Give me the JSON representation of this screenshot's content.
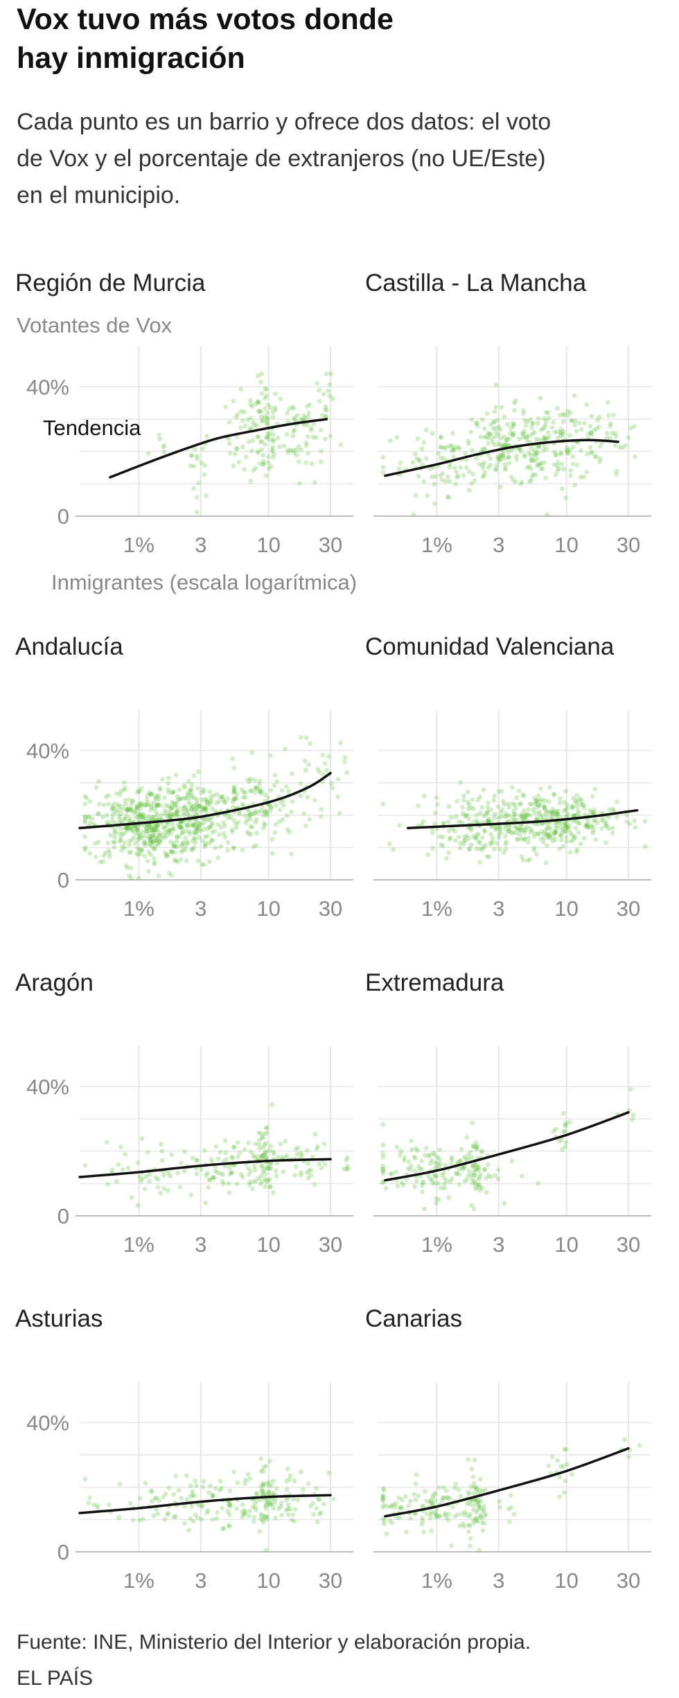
{
  "title_lines": [
    "Vox tuvo más votos donde",
    "hay inmigración"
  ],
  "subtitle_lines": [
    "Cada punto es un barrio y ofrece dos datos: el voto",
    "de Vox y el porcentaje de extranjeros (no UE/Este)",
    "en el municipio."
  ],
  "footer_lines": [
    "Fuente: INE, Ministerio del Interior y elaboración propia.",
    "EL PAÍS"
  ],
  "colors": {
    "points": "#5cbf3a",
    "trend": "#111111",
    "grid": "#e6e6e6",
    "axis": "#bbbbbb",
    "text": "#333333",
    "muted": "#888888"
  },
  "chart_data": [
    {
      "type": "scatter",
      "title": "Región de Murcia",
      "ylabel": "Votantes de Vox",
      "xlabel": "Inmigrantes (escala logarítmica)",
      "x_scale": "log",
      "xlim": [
        0.35,
        45
      ],
      "ylim": [
        0,
        45
      ],
      "x_ticks": [
        1,
        3,
        10,
        30
      ],
      "x_tick_labels": [
        "1%",
        "3",
        "10",
        "30"
      ],
      "y_ticks": [
        0,
        40
      ],
      "y_tick_labels": [
        "0",
        "40%"
      ],
      "annotation": "Tendencia",
      "trend": [
        [
          0.6,
          12
        ],
        [
          1,
          15.5
        ],
        [
          2,
          20
        ],
        [
          4,
          24
        ],
        [
          8,
          26.5
        ],
        [
          15,
          28.5
        ],
        [
          28,
          30
        ]
      ],
      "clusters": [
        {
          "x": 1.5,
          "y": 21,
          "n": 6,
          "sx": 0.05,
          "sy": 3
        },
        {
          "x": 2.9,
          "y": 17,
          "n": 18,
          "sx": 0.05,
          "sy": 6
        },
        {
          "x": 6.5,
          "y": 25,
          "n": 40,
          "sx": 0.07,
          "sy": 7
        },
        {
          "x": 9.5,
          "y": 26,
          "n": 70,
          "sx": 0.05,
          "sy": 8
        },
        {
          "x": 16,
          "y": 27,
          "n": 25,
          "sx": 0.06,
          "sy": 6
        },
        {
          "x": 20,
          "y": 27,
          "n": 30,
          "sx": 0.06,
          "sy": 8
        },
        {
          "x": 28,
          "y": 34,
          "n": 18,
          "sx": 0.04,
          "sy": 6
        }
      ]
    },
    {
      "type": "scatter",
      "title": "Castilla - La Mancha",
      "x_scale": "log",
      "xlim": [
        0.35,
        45
      ],
      "ylim": [
        0,
        45
      ],
      "x_ticks": [
        1,
        3,
        10,
        30
      ],
      "x_tick_labels": [
        "1%",
        "3",
        "10",
        "30"
      ],
      "y_ticks": [
        0,
        40
      ],
      "y_tick_labels": [
        "",
        ""
      ],
      "trend": [
        [
          0.4,
          12.5
        ],
        [
          1,
          16
        ],
        [
          2,
          19
        ],
        [
          4,
          21.5
        ],
        [
          8,
          23
        ],
        [
          15,
          23.5
        ],
        [
          25,
          23
        ]
      ],
      "clusters": [
        {
          "x": 1.2,
          "y": 17,
          "n": 90,
          "sx": 0.25,
          "sy": 5
        },
        {
          "x": 3.5,
          "y": 21,
          "n": 160,
          "sx": 0.2,
          "sy": 6
        },
        {
          "x": 9,
          "y": 23,
          "n": 120,
          "sx": 0.18,
          "sy": 6
        },
        {
          "x": 20,
          "y": 23,
          "n": 30,
          "sx": 0.12,
          "sy": 5
        }
      ]
    },
    {
      "type": "scatter",
      "title": "Andalucía",
      "x_scale": "log",
      "xlim": [
        0.35,
        45
      ],
      "ylim": [
        0,
        45
      ],
      "x_ticks": [
        1,
        3,
        10,
        30
      ],
      "x_tick_labels": [
        "1%",
        "3",
        "10",
        "30"
      ],
      "y_ticks": [
        0,
        40
      ],
      "y_tick_labels": [
        "0",
        "40%"
      ],
      "trend": [
        [
          0.35,
          16
        ],
        [
          1,
          17.5
        ],
        [
          3,
          19.5
        ],
        [
          10,
          24
        ],
        [
          20,
          28.5
        ],
        [
          30,
          33
        ]
      ],
      "clusters": [
        {
          "x": 1.1,
          "y": 17,
          "n": 420,
          "sx": 0.22,
          "sy": 6
        },
        {
          "x": 3.2,
          "y": 19,
          "n": 220,
          "sx": 0.2,
          "sy": 6
        },
        {
          "x": 9,
          "y": 23,
          "n": 110,
          "sx": 0.2,
          "sy": 6
        },
        {
          "x": 25,
          "y": 33,
          "n": 25,
          "sx": 0.1,
          "sy": 6
        }
      ]
    },
    {
      "type": "scatter",
      "title": "Comunidad Valenciana",
      "x_scale": "log",
      "xlim": [
        0.35,
        45
      ],
      "ylim": [
        0,
        45
      ],
      "x_ticks": [
        1,
        3,
        10,
        30
      ],
      "x_tick_labels": [
        "1%",
        "3",
        "10",
        "30"
      ],
      "y_ticks": [
        0,
        40
      ],
      "y_tick_labels": [
        "",
        ""
      ],
      "trend": [
        [
          0.6,
          16
        ],
        [
          2,
          17
        ],
        [
          6,
          18
        ],
        [
          15,
          19.5
        ],
        [
          35,
          21.5
        ]
      ],
      "clusters": [
        {
          "x": 2,
          "y": 17,
          "n": 160,
          "sx": 0.25,
          "sy": 5
        },
        {
          "x": 6,
          "y": 18,
          "n": 220,
          "sx": 0.22,
          "sy": 5
        },
        {
          "x": 15,
          "y": 19,
          "n": 90,
          "sx": 0.2,
          "sy": 4
        }
      ]
    },
    {
      "type": "scatter",
      "title": "Aragón",
      "x_scale": "log",
      "xlim": [
        0.35,
        45
      ],
      "ylim": [
        0,
        45
      ],
      "x_ticks": [
        1,
        3,
        10,
        30
      ],
      "x_tick_labels": [
        "1%",
        "3",
        "10",
        "30"
      ],
      "y_ticks": [
        0,
        40
      ],
      "y_tick_labels": [
        "0",
        "40%"
      ],
      "trend": [
        [
          0.35,
          12
        ],
        [
          1,
          13.5
        ],
        [
          3,
          15.5
        ],
        [
          10,
          17
        ],
        [
          30,
          17.5
        ]
      ],
      "clusters": [
        {
          "x": 1.5,
          "y": 14,
          "n": 60,
          "sx": 0.3,
          "sy": 4
        },
        {
          "x": 6,
          "y": 16,
          "n": 90,
          "sx": 0.25,
          "sy": 4
        },
        {
          "x": 9.5,
          "y": 18,
          "n": 40,
          "sx": 0.03,
          "sy": 6
        },
        {
          "x": 18,
          "y": 17,
          "n": 40,
          "sx": 0.2,
          "sy": 4
        }
      ]
    },
    {
      "type": "scatter",
      "title": "Extremadura",
      "x_scale": "log",
      "xlim": [
        0.35,
        45
      ],
      "ylim": [
        0,
        45
      ],
      "x_ticks": [
        1,
        3,
        10,
        30
      ],
      "x_tick_labels": [
        "1%",
        "3",
        "10",
        "30"
      ],
      "y_ticks": [
        0,
        40
      ],
      "y_tick_labels": [
        "",
        ""
      ],
      "trend": [
        [
          0.4,
          11
        ],
        [
          1,
          14
        ],
        [
          3,
          19
        ],
        [
          10,
          25
        ],
        [
          30,
          32
        ]
      ],
      "clusters": [
        {
          "x": 0.9,
          "y": 14,
          "n": 140,
          "sx": 0.25,
          "sy": 4
        },
        {
          "x": 2,
          "y": 16,
          "n": 40,
          "sx": 0.04,
          "sy": 6
        },
        {
          "x": 9,
          "y": 24,
          "n": 15,
          "sx": 0.05,
          "sy": 4
        },
        {
          "x": 30,
          "y": 32,
          "n": 5,
          "sx": 0.05,
          "sy": 2
        }
      ]
    },
    {
      "type": "scatter",
      "title": "Asturias",
      "x_scale": "log",
      "xlim": [
        0.35,
        45
      ],
      "ylim": [
        0,
        45
      ],
      "x_ticks": [
        1,
        3,
        10,
        30
      ],
      "x_tick_labels": [
        "1%",
        "3",
        "10",
        "30"
      ],
      "y_ticks": [
        0,
        40
      ],
      "y_tick_labels": [
        "0",
        "40%"
      ],
      "trend": [
        [
          0.35,
          12
        ],
        [
          1,
          13.5
        ],
        [
          3,
          15.5
        ],
        [
          10,
          17
        ],
        [
          30,
          17.5
        ]
      ],
      "clusters": [
        {
          "x": 1.5,
          "y": 14,
          "n": 60,
          "sx": 0.3,
          "sy": 4
        },
        {
          "x": 6,
          "y": 16,
          "n": 90,
          "sx": 0.25,
          "sy": 4
        },
        {
          "x": 9.5,
          "y": 18,
          "n": 40,
          "sx": 0.03,
          "sy": 6
        },
        {
          "x": 18,
          "y": 17,
          "n": 40,
          "sx": 0.2,
          "sy": 4
        }
      ]
    },
    {
      "type": "scatter",
      "title": "Canarias",
      "x_scale": "log",
      "xlim": [
        0.35,
        45
      ],
      "ylim": [
        0,
        45
      ],
      "x_ticks": [
        1,
        3,
        10,
        30
      ],
      "x_tick_labels": [
        "1%",
        "3",
        "10",
        "30"
      ],
      "y_ticks": [
        0,
        40
      ],
      "y_tick_labels": [
        "",
        ""
      ],
      "trend": [
        [
          0.4,
          11
        ],
        [
          1,
          14
        ],
        [
          3,
          19
        ],
        [
          10,
          25
        ],
        [
          30,
          32
        ]
      ],
      "clusters": [
        {
          "x": 0.9,
          "y": 14,
          "n": 140,
          "sx": 0.25,
          "sy": 4
        },
        {
          "x": 2,
          "y": 16,
          "n": 40,
          "sx": 0.04,
          "sy": 6
        },
        {
          "x": 9,
          "y": 24,
          "n": 15,
          "sx": 0.05,
          "sy": 4
        },
        {
          "x": 30,
          "y": 32,
          "n": 5,
          "sx": 0.05,
          "sy": 2
        }
      ]
    }
  ]
}
